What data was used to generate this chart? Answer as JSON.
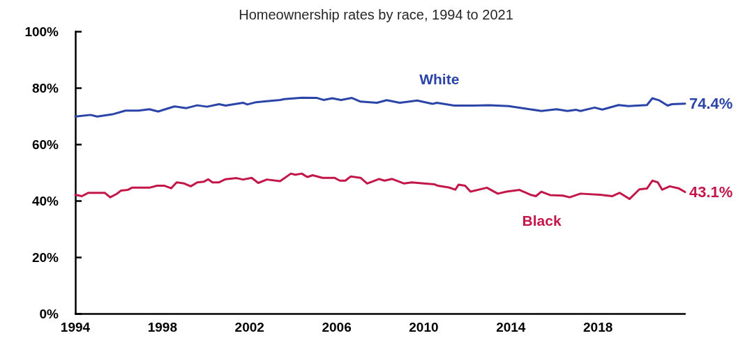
{
  "chart_data": {
    "type": "line",
    "title": "Homeownership rates by race, 1994 to 2021",
    "xlim": [
      1994,
      2022
    ],
    "xticks": [
      1994,
      1998,
      2002,
      2006,
      2010,
      2014,
      2018
    ],
    "ylim": [
      0,
      100
    ],
    "yticks": [
      {
        "value": 0,
        "label": "0%"
      },
      {
        "value": 20,
        "label": "20%"
      },
      {
        "value": 40,
        "label": "40%"
      },
      {
        "value": 60,
        "label": "60%"
      },
      {
        "value": 80,
        "label": "80%"
      },
      {
        "value": 100,
        "label": "100%"
      }
    ],
    "grid": false,
    "marker": "none",
    "line_style": "solid",
    "series": [
      {
        "name": "White",
        "color": "#2b44a8",
        "x": [
          1994.0,
          1994.7,
          1995.0,
          1995.7,
          1996.3,
          1996.9,
          1997.4,
          1997.8,
          1998.55,
          1999.1,
          1999.6,
          2000.05,
          2000.6,
          2000.9,
          2001.7,
          2001.9,
          2002.3,
          2002.7,
          2003.4,
          2003.6,
          2004.4,
          2005.1,
          2005.4,
          2005.8,
          2006.2,
          2006.7,
          2007.1,
          2007.85,
          2008.3,
          2008.9,
          2009.7,
          2010.4,
          2010.6,
          2011.4,
          2012.3,
          2013.0,
          2013.9,
          2014.7,
          2015.4,
          2016.1,
          2016.6,
          2017.0,
          2017.2,
          2017.85,
          2018.2,
          2018.95,
          2019.4,
          2020.25,
          2020.5,
          2020.8,
          2021.2,
          2021.4,
          2022.0
        ],
        "values": [
          69.8,
          70.4,
          69.8,
          70.6,
          71.9,
          71.9,
          72.4,
          71.6,
          73.4,
          72.8,
          73.8,
          73.3,
          74.2,
          73.7,
          74.7,
          74.1,
          74.9,
          75.2,
          75.7,
          76.0,
          76.5,
          76.4,
          75.7,
          76.3,
          75.7,
          76.4,
          75.1,
          74.7,
          75.6,
          74.7,
          75.5,
          74.3,
          74.7,
          73.7,
          73.7,
          73.8,
          73.5,
          72.6,
          71.8,
          72.4,
          71.8,
          72.2,
          71.8,
          73.0,
          72.3,
          73.9,
          73.5,
          73.9,
          76.3,
          75.6,
          73.7,
          74.2,
          74.4
        ],
        "value_labels": [
          null,
          null,
          null,
          null,
          null,
          null,
          null,
          null,
          null,
          null,
          null,
          null,
          null,
          null,
          null,
          null,
          null,
          null,
          null,
          null,
          null,
          null,
          null,
          null,
          null,
          null,
          null,
          null,
          null,
          null,
          null,
          null,
          null,
          null,
          null,
          null,
          null,
          null,
          null,
          null,
          null,
          null,
          null,
          null,
          null,
          null,
          null,
          null,
          null,
          null,
          null,
          null,
          "74.4%"
        ]
      },
      {
        "name": "Black",
        "color": "#c3174a",
        "x": [
          1994.0,
          1994.3,
          1994.6,
          1995.35,
          1995.6,
          1995.9,
          1996.1,
          1996.4,
          1996.6,
          1997.4,
          1997.75,
          1998.1,
          1998.4,
          1998.65,
          1999.0,
          1999.3,
          1999.6,
          1999.9,
          2000.1,
          2000.3,
          2000.6,
          2000.9,
          2001.4,
          2001.7,
          2002.1,
          2002.4,
          2002.8,
          2003.4,
          2003.9,
          2004.1,
          2004.4,
          2004.65,
          2004.9,
          2005.35,
          2005.9,
          2006.15,
          2006.4,
          2006.65,
          2007.1,
          2007.4,
          2007.95,
          2008.2,
          2008.55,
          2009.1,
          2009.45,
          2010.0,
          2010.5,
          2010.65,
          2011.15,
          2011.45,
          2011.6,
          2011.9,
          2012.15,
          2012.9,
          2013.4,
          2013.8,
          2014.4,
          2014.9,
          2015.15,
          2015.4,
          2015.8,
          2016.4,
          2016.7,
          2017.2,
          2018.1,
          2018.65,
          2019.0,
          2019.45,
          2019.9,
          2020.25,
          2020.5,
          2020.75,
          2020.95,
          2021.3,
          2021.7,
          2022.0
        ],
        "values": [
          42.1,
          41.6,
          42.8,
          42.8,
          41.2,
          42.4,
          43.6,
          43.8,
          44.6,
          44.6,
          45.3,
          45.3,
          44.4,
          46.5,
          46.1,
          45.1,
          46.5,
          46.7,
          47.6,
          46.5,
          46.5,
          47.6,
          48.0,
          47.5,
          48.1,
          46.3,
          47.5,
          46.9,
          49.6,
          49.2,
          49.6,
          48.4,
          49.0,
          48.1,
          48.1,
          47.1,
          47.1,
          48.6,
          48.1,
          46.1,
          47.7,
          47.1,
          47.7,
          46.1,
          46.5,
          46.1,
          45.8,
          45.3,
          44.7,
          43.9,
          45.7,
          45.3,
          43.2,
          44.6,
          42.5,
          43.2,
          43.8,
          42.1,
          41.6,
          43.2,
          42.0,
          41.8,
          41.2,
          42.5,
          42.1,
          41.6,
          42.8,
          40.6,
          44.0,
          44.3,
          47.1,
          46.5,
          43.9,
          45.1,
          44.4,
          43.1
        ],
        "value_labels": [
          null,
          null,
          null,
          null,
          null,
          null,
          null,
          null,
          null,
          null,
          null,
          null,
          null,
          null,
          null,
          null,
          null,
          null,
          null,
          null,
          null,
          null,
          null,
          null,
          null,
          null,
          null,
          null,
          null,
          null,
          null,
          null,
          null,
          null,
          null,
          null,
          null,
          null,
          null,
          null,
          null,
          null,
          null,
          null,
          null,
          null,
          null,
          null,
          null,
          null,
          null,
          null,
          null,
          null,
          null,
          null,
          null,
          null,
          null,
          null,
          null,
          null,
          null,
          null,
          null,
          null,
          null,
          null,
          null,
          null,
          null,
          null,
          null,
          null,
          null,
          "43.1%"
        ]
      }
    ]
  }
}
